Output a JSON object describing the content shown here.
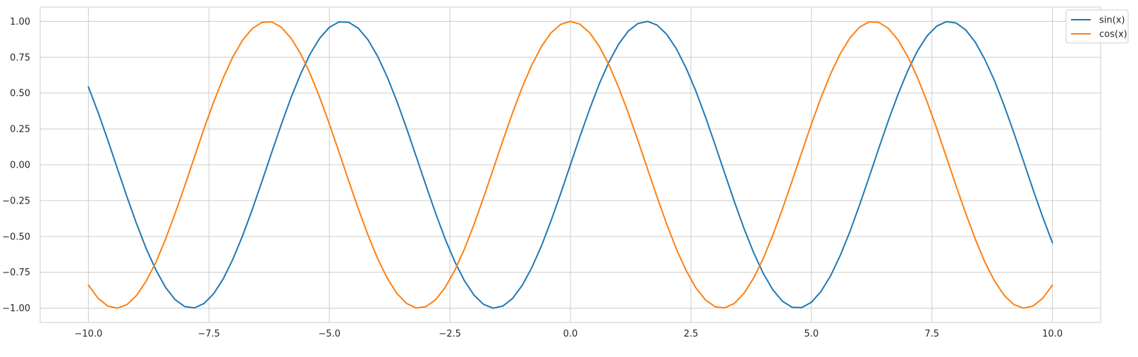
{
  "chart_data": {
    "type": "line",
    "title": "",
    "xlabel": "",
    "ylabel": "",
    "xlim": [
      -11.0,
      11.0
    ],
    "ylim": [
      -1.1,
      1.1
    ],
    "grid": true,
    "legend_position": "upper right",
    "x_ticks": [
      -10.0,
      -7.5,
      -5.0,
      -2.5,
      0.0,
      2.5,
      5.0,
      7.5,
      10.0
    ],
    "x_tick_labels": [
      "−10.0",
      "−7.5",
      "−5.0",
      "−2.5",
      "0.0",
      "2.5",
      "5.0",
      "7.5",
      "10.0"
    ],
    "y_ticks": [
      -1.0,
      -0.75,
      -0.5,
      -0.25,
      0.0,
      0.25,
      0.5,
      0.75,
      1.0
    ],
    "y_tick_labels": [
      "−1.00",
      "−0.75",
      "−0.50",
      "−0.25",
      "0.00",
      "0.25",
      "0.50",
      "0.75",
      "1.00"
    ],
    "x": [
      -10.0,
      -9.8,
      -9.6,
      -9.4,
      -9.2,
      -9.0,
      -8.8,
      -8.6,
      -8.4,
      -8.2,
      -8.0,
      -7.8,
      -7.6,
      -7.4,
      -7.2,
      -7.0,
      -6.8,
      -6.6,
      -6.4,
      -6.2,
      -6.0,
      -5.8,
      -5.6,
      -5.4,
      -5.2,
      -5.0,
      -4.8,
      -4.6,
      -4.4,
      -4.2,
      -4.0,
      -3.8,
      -3.6,
      -3.4,
      -3.2,
      -3.0,
      -2.8,
      -2.6,
      -2.4,
      -2.2,
      -2.0,
      -1.8,
      -1.6,
      -1.4,
      -1.2,
      -1.0,
      -0.8,
      -0.6,
      -0.4,
      -0.2,
      0.0,
      0.2,
      0.4,
      0.6,
      0.8,
      1.0,
      1.2,
      1.4,
      1.6,
      1.8,
      2.0,
      2.2,
      2.4,
      2.6,
      2.8,
      3.0,
      3.2,
      3.4,
      3.6,
      3.8,
      4.0,
      4.2,
      4.4,
      4.6,
      4.8,
      5.0,
      5.2,
      5.4,
      5.6,
      5.8,
      6.0,
      6.2,
      6.4,
      6.6,
      6.8,
      7.0,
      7.2,
      7.4,
      7.6,
      7.8,
      8.0,
      8.2,
      8.4,
      8.6,
      8.8,
      9.0,
      9.2,
      9.4,
      9.6,
      9.8,
      10.0
    ],
    "series": [
      {
        "name": "sin(x)",
        "color": "#1f77b4",
        "y": [
          0.544,
          0.366,
          0.175,
          -0.025,
          -0.223,
          -0.412,
          -0.585,
          -0.733,
          -0.855,
          -0.941,
          -0.989,
          -0.998,
          -0.967,
          -0.899,
          -0.794,
          -0.657,
          -0.494,
          -0.312,
          -0.117,
          0.083,
          0.279,
          0.465,
          0.631,
          0.773,
          0.883,
          0.959,
          0.996,
          0.994,
          0.952,
          0.872,
          0.757,
          0.612,
          0.443,
          0.256,
          0.058,
          -0.141,
          -0.335,
          -0.516,
          -0.675,
          -0.808,
          -0.909,
          -0.974,
          -1.0,
          -0.985,
          -0.932,
          -0.841,
          -0.717,
          -0.565,
          -0.389,
          -0.199,
          0.0,
          0.199,
          0.389,
          0.565,
          0.717,
          0.841,
          0.932,
          0.985,
          1.0,
          0.974,
          0.909,
          0.808,
          0.675,
          0.516,
          0.335,
          0.141,
          -0.058,
          -0.256,
          -0.443,
          -0.612,
          -0.757,
          -0.872,
          -0.952,
          -0.994,
          -0.996,
          -0.959,
          -0.883,
          -0.773,
          -0.631,
          -0.465,
          -0.279,
          -0.083,
          0.117,
          0.312,
          0.494,
          0.657,
          0.794,
          0.899,
          0.967,
          0.998,
          0.989,
          0.941,
          0.855,
          0.733,
          0.585,
          0.412,
          0.223,
          0.025,
          -0.175,
          -0.366,
          -0.544
        ]
      },
      {
        "name": "cos(x)",
        "color": "#ff7f0e",
        "y": [
          -0.839,
          -0.931,
          -0.985,
          -1.0,
          -0.975,
          -0.911,
          -0.811,
          -0.68,
          -0.519,
          -0.338,
          -0.146,
          0.054,
          0.253,
          0.439,
          0.608,
          0.754,
          0.869,
          0.95,
          0.993,
          0.997,
          0.96,
          0.885,
          0.776,
          0.635,
          0.469,
          0.284,
          0.088,
          -0.112,
          -0.307,
          -0.49,
          -0.654,
          -0.791,
          -0.897,
          -0.967,
          -0.998,
          -0.99,
          -0.942,
          -0.857,
          -0.737,
          -0.589,
          -0.416,
          -0.227,
          -0.029,
          0.17,
          0.362,
          0.54,
          0.697,
          0.825,
          0.921,
          0.98,
          1.0,
          0.98,
          0.921,
          0.825,
          0.697,
          0.54,
          0.362,
          0.17,
          -0.029,
          -0.227,
          -0.416,
          -0.589,
          -0.737,
          -0.857,
          -0.942,
          -0.99,
          -0.998,
          -0.967,
          -0.897,
          -0.791,
          -0.654,
          -0.49,
          -0.307,
          -0.112,
          0.088,
          0.284,
          0.469,
          0.635,
          0.776,
          0.885,
          0.96,
          0.997,
          0.993,
          0.95,
          0.869,
          0.754,
          0.608,
          0.439,
          0.253,
          0.054,
          -0.146,
          -0.338,
          -0.519,
          -0.68,
          -0.811,
          -0.911,
          -0.975,
          -1.0,
          -0.985,
          -0.931,
          -0.839
        ]
      }
    ]
  }
}
